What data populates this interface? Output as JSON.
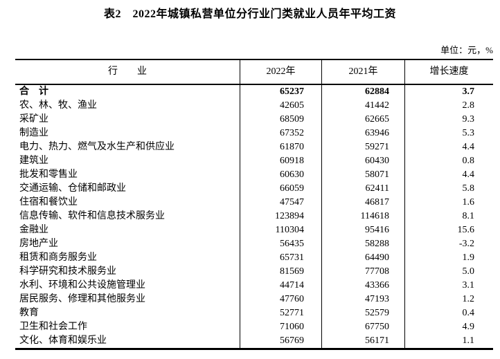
{
  "page": {
    "title": "表2　2022年城镇私营单位分行业门类就业人员年平均工资",
    "unit_label": "单位：元，%"
  },
  "colors": {
    "text": "#000000",
    "border": "#000000",
    "background": "#ffffff"
  },
  "table": {
    "columns": [
      "行　　业",
      "2022年",
      "2021年",
      "增长速度"
    ],
    "rows": [
      {
        "industry": "合　计",
        "y2022": "65237",
        "y2021": "62884",
        "growth": "3.7",
        "emphasis": true
      },
      {
        "industry": "农、林、牧、渔业",
        "y2022": "42605",
        "y2021": "41442",
        "growth": "2.8",
        "emphasis": false
      },
      {
        "industry": "采矿业",
        "y2022": "68509",
        "y2021": "62665",
        "growth": "9.3",
        "emphasis": false
      },
      {
        "industry": "制造业",
        "y2022": "67352",
        "y2021": "63946",
        "growth": "5.3",
        "emphasis": false
      },
      {
        "industry": "电力、热力、燃气及水生产和供应业",
        "y2022": "61870",
        "y2021": "59271",
        "growth": "4.4",
        "emphasis": false
      },
      {
        "industry": "建筑业",
        "y2022": "60918",
        "y2021": "60430",
        "growth": "0.8",
        "emphasis": false
      },
      {
        "industry": "批发和零售业",
        "y2022": "60630",
        "y2021": "58071",
        "growth": "4.4",
        "emphasis": false
      },
      {
        "industry": "交通运输、仓储和邮政业",
        "y2022": "66059",
        "y2021": "62411",
        "growth": "5.8",
        "emphasis": false
      },
      {
        "industry": "住宿和餐饮业",
        "y2022": "47547",
        "y2021": "46817",
        "growth": "1.6",
        "emphasis": false
      },
      {
        "industry": "信息传输、软件和信息技术服务业",
        "y2022": "123894",
        "y2021": "114618",
        "growth": "8.1",
        "emphasis": false
      },
      {
        "industry": "金融业",
        "y2022": "110304",
        "y2021": "95416",
        "growth": "15.6",
        "emphasis": false
      },
      {
        "industry": "房地产业",
        "y2022": "56435",
        "y2021": "58288",
        "growth": "-3.2",
        "emphasis": false
      },
      {
        "industry": "租赁和商务服务业",
        "y2022": "65731",
        "y2021": "64490",
        "growth": "1.9",
        "emphasis": false
      },
      {
        "industry": "科学研究和技术服务业",
        "y2022": "81569",
        "y2021": "77708",
        "growth": "5.0",
        "emphasis": false
      },
      {
        "industry": "水利、环境和公共设施管理业",
        "y2022": "44714",
        "y2021": "43366",
        "growth": "3.1",
        "emphasis": false
      },
      {
        "industry": "居民服务、修理和其他服务业",
        "y2022": "47760",
        "y2021": "47193",
        "growth": "1.2",
        "emphasis": false
      },
      {
        "industry": "教育",
        "y2022": "52771",
        "y2021": "52579",
        "growth": "0.4",
        "emphasis": false
      },
      {
        "industry": "卫生和社会工作",
        "y2022": "71060",
        "y2021": "67750",
        "growth": "4.9",
        "emphasis": false
      },
      {
        "industry": "文化、体育和娱乐业",
        "y2022": "56769",
        "y2021": "56171",
        "growth": "1.1",
        "emphasis": false
      }
    ]
  }
}
